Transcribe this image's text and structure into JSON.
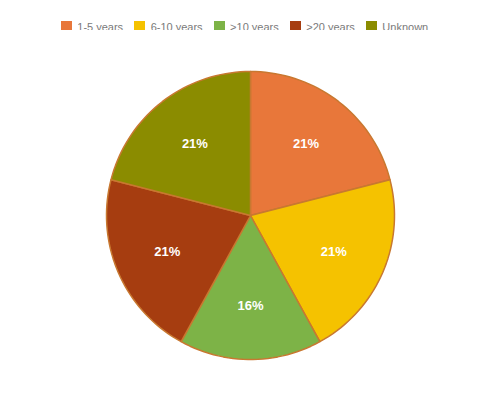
{
  "chart_data": {
    "type": "pie",
    "categories": [
      "1-5 years",
      "6-10 years",
      ">10 years",
      ">20 years",
      "Unknown"
    ],
    "values": [
      21,
      21,
      16,
      21,
      21
    ],
    "value_labels": [
      "21%",
      "21%",
      "16%",
      "21%",
      "21%"
    ],
    "colors": [
      "#E8773A",
      "#F5C200",
      "#7DB347",
      "#A63D10",
      "#8B8C00"
    ],
    "data_labels": true,
    "legend": "top"
  }
}
